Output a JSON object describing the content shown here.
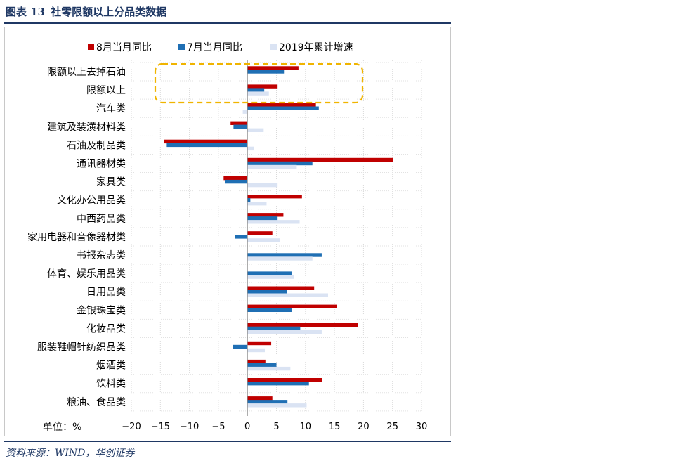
{
  "header": {
    "figure_label": "图表 13",
    "title": "社零限额以上分品类数据"
  },
  "footer": {
    "source": "资料来源：WIND，华创证券"
  },
  "colors": {
    "aug": "#c00000",
    "jul": "#1f6fb4",
    "ytd2019": "#dae3f3",
    "highlight": "#f0b400",
    "title": "#1f3864"
  },
  "chart_data": {
    "type": "bar",
    "orientation": "horizontal",
    "unit_label": "单位：%",
    "xlim": [
      -20,
      30
    ],
    "xticks": [
      -20,
      -15,
      -10,
      -5,
      0,
      5,
      10,
      15,
      20,
      25,
      30
    ],
    "grid": true,
    "legend_position": "top",
    "categories": [
      "限额以上去掉石油",
      "限额以上",
      "汽车类",
      "建筑及装潢材料类",
      "石油及制品类",
      "通讯器材类",
      "家具类",
      "文化办公用品类",
      "中西药品类",
      "家用电器和音像器材类",
      "书报杂志类",
      "体育、娱乐用品类",
      "日用品类",
      "金银珠宝类",
      "化妆品类",
      "服装鞋帽针纺织品类",
      "烟酒类",
      "饮料类",
      "粮油、食品类"
    ],
    "series": [
      {
        "name": "8月当月同比",
        "values": [
          8.8,
          5.2,
          11.8,
          -2.9,
          -14.4,
          25.1,
          -4.1,
          9.4,
          6.2,
          4.3,
          null,
          null,
          11.5,
          15.4,
          19.0,
          4.1,
          3.1,
          12.9,
          4.3
        ]
      },
      {
        "name": "7月当月同比",
        "values": [
          6.3,
          2.9,
          12.3,
          -2.4,
          -13.9,
          11.2,
          -3.9,
          0.5,
          5.2,
          -2.2,
          12.8,
          7.6,
          6.8,
          7.6,
          9.1,
          -2.5,
          5.0,
          10.6,
          6.9
        ]
      },
      {
        "name": "2019年累计增速",
        "values": [
          null,
          3.7,
          -0.8,
          2.8,
          1.1,
          8.5,
          5.2,
          3.3,
          9.0,
          5.6,
          11.2,
          8.0,
          13.9,
          null,
          12.8,
          3.0,
          7.4,
          null,
          10.2
        ]
      }
    ],
    "annotations": [
      {
        "type": "dashed-rounded-box",
        "covers_categories": [
          "限额以上去掉石油",
          "限额以上"
        ]
      }
    ]
  }
}
